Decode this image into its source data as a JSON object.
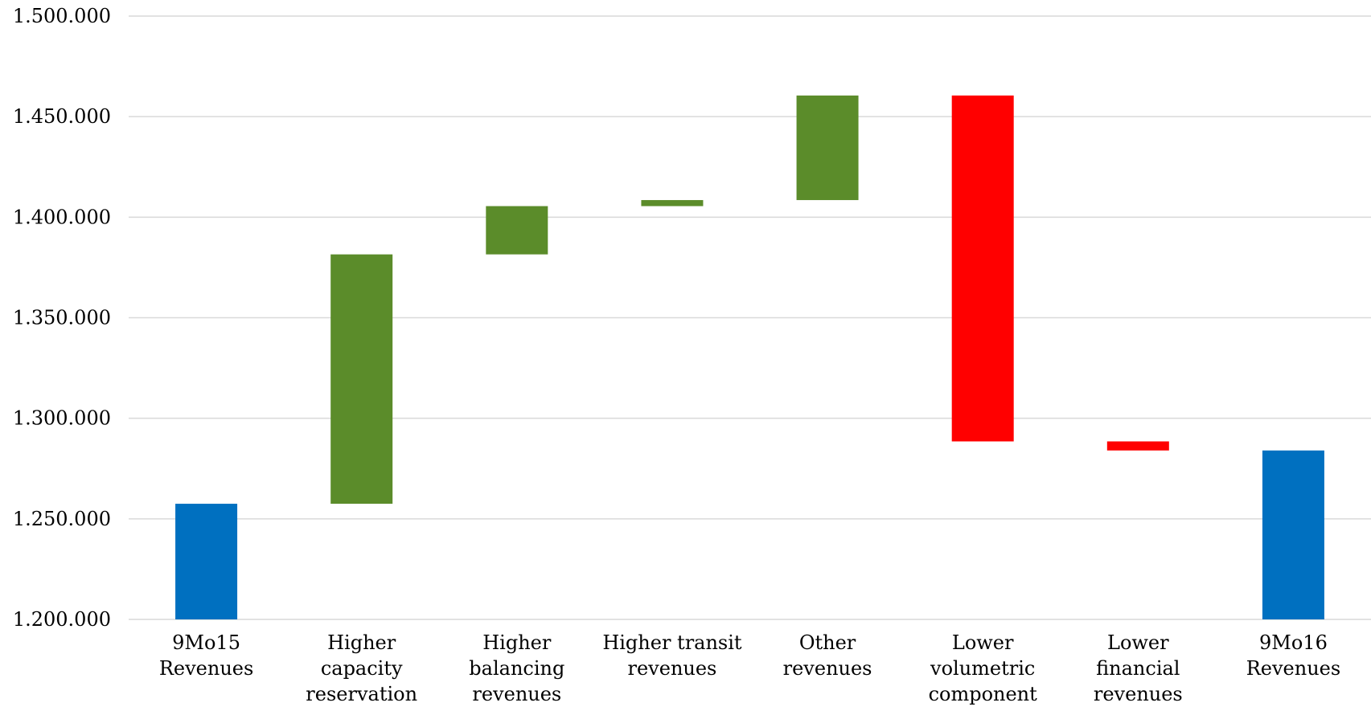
{
  "chart_data": {
    "type": "bar",
    "subtype": "waterfall",
    "title": "",
    "xlabel": "",
    "ylabel": "",
    "ylim": [
      1200000,
      1500000
    ],
    "grid": true,
    "legend": "none",
    "y_ticks": [
      1200000,
      1250000,
      1300000,
      1350000,
      1400000,
      1450000,
      1500000
    ],
    "y_tick_labels": [
      "1.200.000",
      "1.250.000",
      "1.300.000",
      "1.350.000",
      "1.400.000",
      "1.450.000",
      "1.500.000"
    ],
    "categories": [
      [
        "9Mo15",
        "Revenues"
      ],
      [
        "Higher",
        "capacity",
        "reservation"
      ],
      [
        "Higher",
        "balancing",
        "revenues"
      ],
      [
        "Higher transit",
        "revenues"
      ],
      [
        "Other",
        "revenues"
      ],
      [
        "Lower",
        "volumetric",
        "component"
      ],
      [
        "Lower",
        "financial",
        "revenues"
      ],
      [
        "9Mo16",
        "Revenues"
      ]
    ],
    "bars": [
      {
        "start": 1200000,
        "end": 1257500,
        "kind": "total"
      },
      {
        "start": 1257500,
        "end": 1381500,
        "kind": "increase"
      },
      {
        "start": 1381500,
        "end": 1405500,
        "kind": "increase"
      },
      {
        "start": 1405500,
        "end": 1408500,
        "kind": "increase"
      },
      {
        "start": 1408500,
        "end": 1460500,
        "kind": "increase"
      },
      {
        "start": 1460500,
        "end": 1288500,
        "kind": "decrease"
      },
      {
        "start": 1288500,
        "end": 1284000,
        "kind": "decrease"
      },
      {
        "start": 1200000,
        "end": 1284000,
        "kind": "total"
      }
    ],
    "colors": {
      "total": "#0070c0",
      "increase": "#5b8c2a",
      "decrease": "#ff0000"
    }
  }
}
